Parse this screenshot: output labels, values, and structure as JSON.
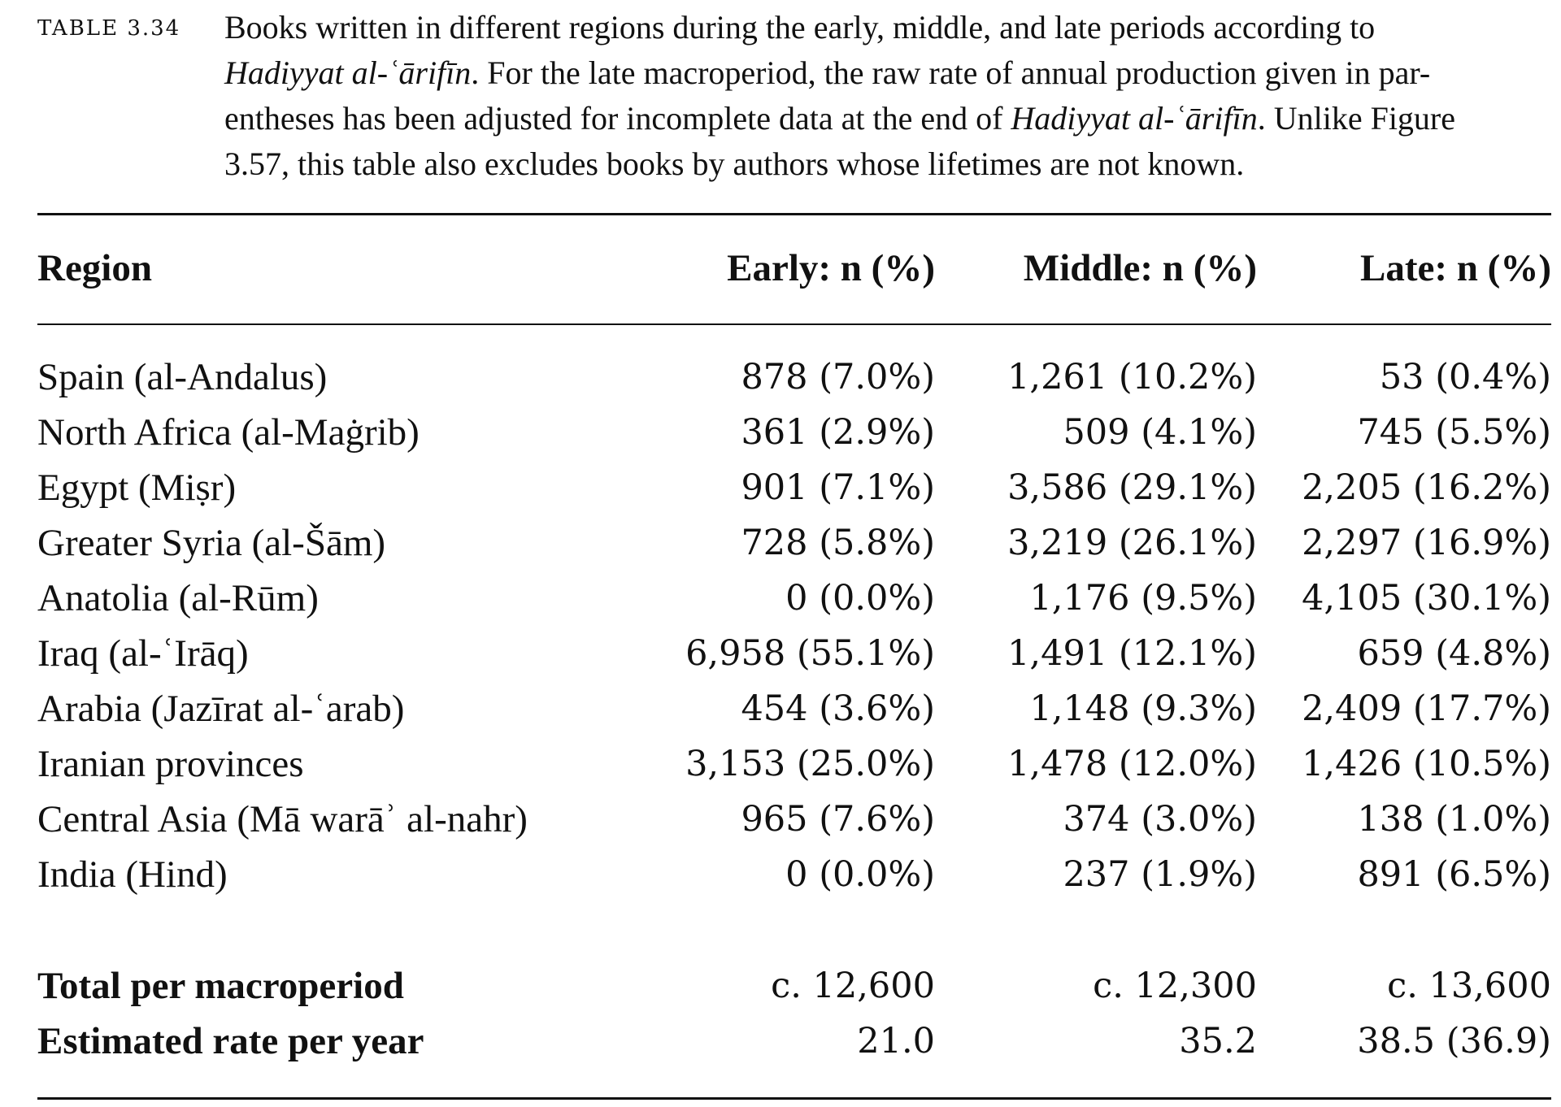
{
  "caption": {
    "label": "TABLE 3.34",
    "line1": "Books written in different regions during the early, middle, and late periods according to",
    "line2_title": "Hadiyyat al-ʿārifīn",
    "line2_rest": ". For the late macroperiod, the raw rate of annual production given in par-",
    "line3_start": "entheses has been adjusted for incomplete data at the end of ",
    "line3_title": "Hadiyyat al-ʿārifīn",
    "line3_end": ". Unlike Figure",
    "line4": "3.57, this table also excludes books by authors whose lifetimes are not known."
  },
  "table": {
    "headers": [
      "Region",
      "Early: n (%)",
      "Middle: n (%)",
      "Late: n (%)"
    ],
    "rows": [
      [
        "Spain (al-Andalus)",
        "878 (7.0%)",
        "1,261 (10.2%)",
        "53 (0.4%)"
      ],
      [
        "North Africa (al-Maġrib)",
        "361 (2.9%)",
        "509 (4.1%)",
        "745 (5.5%)"
      ],
      [
        "Egypt (Miṣr)",
        "901 (7.1%)",
        "3,586 (29.1%)",
        "2,205 (16.2%)"
      ],
      [
        "Greater Syria (al-Šām)",
        "728 (5.8%)",
        "3,219 (26.1%)",
        "2,297 (16.9%)"
      ],
      [
        "Anatolia (al-Rūm)",
        "0 (0.0%)",
        "1,176 (9.5%)",
        "4,105 (30.1%)"
      ],
      [
        "Iraq (al-ʿIrāq)",
        "6,958 (55.1%)",
        "1,491 (12.1%)",
        "659 (4.8%)"
      ],
      [
        "Arabia (Jazīrat al-ʿarab)",
        "454 (3.6%)",
        "1,148 (9.3%)",
        "2,409 (17.7%)"
      ],
      [
        "Iranian provinces",
        "3,153 (25.0%)",
        "1,478 (12.0%)",
        "1,426 (10.5%)"
      ],
      [
        "Central Asia (Mā warāʾ al-nahr)",
        "965 (7.6%)",
        "374 (3.0%)",
        "138 (1.0%)"
      ],
      [
        "India (Hind)",
        "0 (0.0%)",
        "237 (1.9%)",
        "891 (6.5%)"
      ]
    ],
    "totals": [
      [
        "Total per macroperiod",
        "c. 12,600",
        "c. 12,300",
        "c. 13,600"
      ],
      [
        "Estimated rate per year",
        "21.0",
        "35.2",
        "38.5 (36.9)"
      ]
    ]
  }
}
